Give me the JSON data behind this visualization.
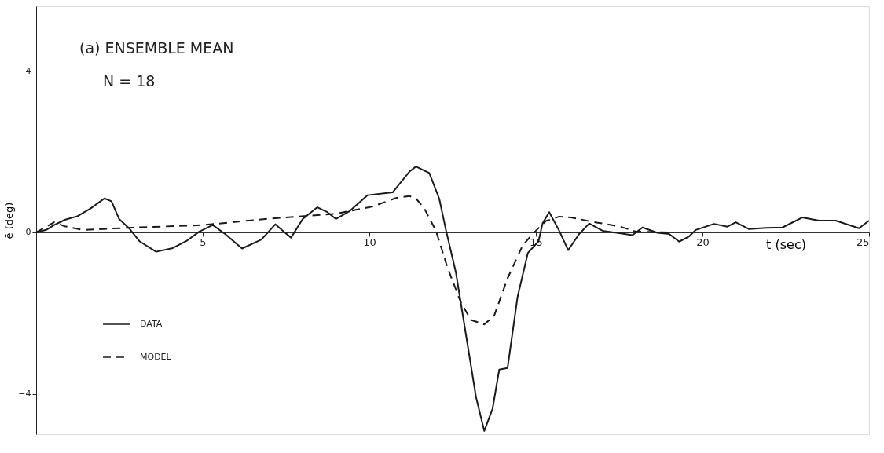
{
  "chart_data": {
    "type": "line",
    "title": "(a) ENSEMBLE MEAN",
    "annotations": [
      "N = 18"
    ],
    "xlabel": "t (sec)",
    "ylabel": "ē (deg)",
    "xlim": [
      0,
      25
    ],
    "xticks": [
      5,
      10,
      15,
      20,
      25
    ],
    "ylim": [
      -5,
      5.6
    ],
    "yticks": [
      -4,
      0,
      4
    ],
    "grid": false,
    "legend": "bottom left",
    "series": [
      {
        "name": "DATA",
        "color": "#1a1a1a",
        "line_style": "solid",
        "x": [
          0,
          0.3,
          0.54,
          0.86,
          1.24,
          1.63,
          2.05,
          2.26,
          2.49,
          2.8,
          3.1,
          3.6,
          4.1,
          4.5,
          4.9,
          5.3,
          5.67,
          6.18,
          6.76,
          7.18,
          7.46,
          7.65,
          8.0,
          8.44,
          8.74,
          9.0,
          9.4,
          9.95,
          10.7,
          11.2,
          11.4,
          11.8,
          12.1,
          12.3,
          12.6,
          12.9,
          13.2,
          13.45,
          13.7,
          13.9,
          14.15,
          14.45,
          14.76,
          15.08,
          15.2,
          15.4,
          15.7,
          15.97,
          16.3,
          16.6,
          17.0,
          17.9,
          18.2,
          18.65,
          19.0,
          19.3,
          19.6,
          19.8,
          20.35,
          20.75,
          21.0,
          21.4,
          21.9,
          22.4,
          23.0,
          23.5,
          24.0,
          24.7,
          25.0
        ],
        "values": [
          0,
          0.06,
          0.18,
          0.31,
          0.4,
          0.59,
          0.84,
          0.77,
          0.33,
          0.09,
          -0.22,
          -0.48,
          -0.39,
          -0.22,
          0.02,
          0.18,
          -0.04,
          -0.4,
          -0.18,
          0.2,
          0,
          -0.13,
          0.33,
          0.62,
          0.5,
          0.33,
          0.52,
          0.92,
          0.99,
          1.5,
          1.63,
          1.47,
          0.83,
          0.06,
          -1.0,
          -2.53,
          -4.07,
          -4.92,
          -4.37,
          -3.4,
          -3.36,
          -1.6,
          -0.51,
          -0.22,
          0.22,
          0.5,
          0.04,
          -0.44,
          -0.04,
          0.22,
          0.04,
          -0.07,
          0.12,
          -0.01,
          -0.04,
          -0.23,
          -0.1,
          0.06,
          0.21,
          0.14,
          0.25,
          0.08,
          0.11,
          0.12,
          0.37,
          0.29,
          0.29,
          0.1,
          0.29
        ]
      },
      {
        "name": "MODEL",
        "color": "#1a1a1a",
        "line_style": "dashed",
        "x": [
          0,
          0.54,
          0.86,
          1.4,
          3.0,
          5.0,
          7.0,
          9.0,
          10.1,
          10.8,
          11.2,
          11.4,
          11.65,
          12.0,
          12.35,
          12.75,
          13.05,
          13.45,
          13.75,
          14.15,
          14.6,
          14.9,
          15.3,
          15.7,
          16.05,
          16.7,
          17.5,
          18.0,
          19.0
        ],
        "values": [
          0,
          0.25,
          0.15,
          0.06,
          0.12,
          0.18,
          0.34,
          0.46,
          0.64,
          0.85,
          0.9,
          0.84,
          0.59,
          0.04,
          -0.88,
          -1.74,
          -2.17,
          -2.28,
          -2.06,
          -1.14,
          -0.33,
          -0.04,
          0.28,
          0.39,
          0.37,
          0.26,
          0.15,
          0.02,
          0
        ]
      }
    ]
  }
}
